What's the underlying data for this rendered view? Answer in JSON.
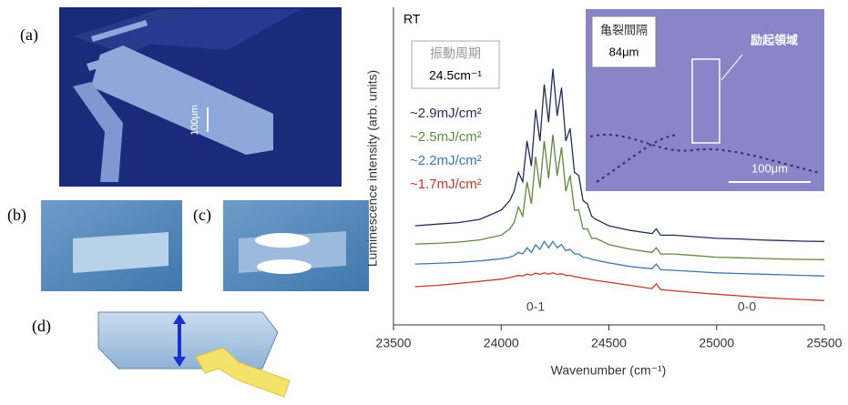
{
  "panels": {
    "a": {
      "label": "(a)",
      "scale": "100μm"
    },
    "b": {
      "label": "(b)"
    },
    "c": {
      "label": "(c)"
    },
    "d": {
      "label": "(d)"
    }
  },
  "chart_data": {
    "type": "line",
    "xlabel": "Wavenumber (cm⁻¹)",
    "ylabel": "Luminescence intensity (arb. units)",
    "condition": "RT",
    "peak_01": "0-1",
    "peak_00": "0-0",
    "period_box": {
      "label": "振動周期",
      "value": "24.5cm⁻¹"
    },
    "inset": {
      "crack_label": "亀裂間隔",
      "crack_value": "84μm",
      "region": "励起領域",
      "scale": "100μm"
    },
    "xlim": [
      23500,
      25500
    ],
    "xticks": [
      23500,
      24000,
      24500,
      25000,
      25500
    ],
    "ylim": [
      0,
      100
    ],
    "x": [
      23600,
      23700,
      23800,
      23900,
      24000,
      24040,
      24060,
      24080,
      24100,
      24120,
      24140,
      24160,
      24180,
      24200,
      24220,
      24240,
      24260,
      24280,
      24300,
      24320,
      24340,
      24360,
      24380,
      24400,
      24420,
      24440,
      24500,
      24600,
      24700,
      24720,
      24740,
      24800,
      24900,
      25000,
      25100,
      25200,
      25300,
      25400,
      25500
    ],
    "series": [
      {
        "name": "~2.9mJ/cm²",
        "color": "#1f2f5a",
        "values": [
          31,
          31.5,
          32,
          33,
          36,
          39,
          42,
          48,
          45,
          58,
          50,
          68,
          58,
          76,
          64,
          81,
          66,
          75,
          58,
          62,
          48,
          47,
          39,
          38,
          34,
          33,
          31,
          29.5,
          28.5,
          30,
          28,
          28,
          27.5,
          27,
          26.8,
          26.5,
          26.3,
          26.1,
          26
        ]
      },
      {
        "name": "~2.5mJ/cm²",
        "color": "#5e8a3e",
        "values": [
          25.2,
          25.4,
          25.8,
          26.5,
          28,
          30,
          32,
          37,
          34,
          45,
          38,
          53,
          43,
          58,
          46,
          60,
          47,
          56,
          42,
          47,
          36,
          36,
          30,
          30,
          27,
          27,
          25,
          23.5,
          22.5,
          24,
          22,
          22,
          21.5,
          21,
          20.8,
          20.6,
          20.4,
          20.3,
          20.2
        ]
      },
      {
        "name": "~2.2mJ/cm²",
        "color": "#3a78b0",
        "values": [
          18.8,
          19,
          19.3,
          19.8,
          20.5,
          21,
          21.5,
          22.5,
          22,
          24,
          22.5,
          25,
          23.5,
          26,
          24,
          26,
          24,
          25,
          23,
          23.5,
          22,
          22,
          21,
          20.8,
          20.3,
          20,
          19.2,
          18,
          17.3,
          18.8,
          17,
          16.8,
          16.4,
          16,
          15.8,
          15.6,
          15.4,
          15.2,
          15
        ]
      },
      {
        "name": "~1.7mJ/cm²",
        "color": "#c0392b",
        "values": [
          11.6,
          12,
          12.6,
          13.3,
          14,
          14.5,
          14.8,
          15.2,
          15,
          15.6,
          15.3,
          15.9,
          15.5,
          16,
          15.6,
          16,
          15.5,
          15.7,
          15.2,
          15.2,
          14.8,
          14.6,
          14.3,
          14.1,
          13.8,
          13.6,
          13,
          12,
          11,
          12.5,
          10.7,
          10.3,
          9.7,
          9.2,
          8.7,
          8.2,
          7.8,
          7.5,
          7.2
        ]
      }
    ]
  }
}
